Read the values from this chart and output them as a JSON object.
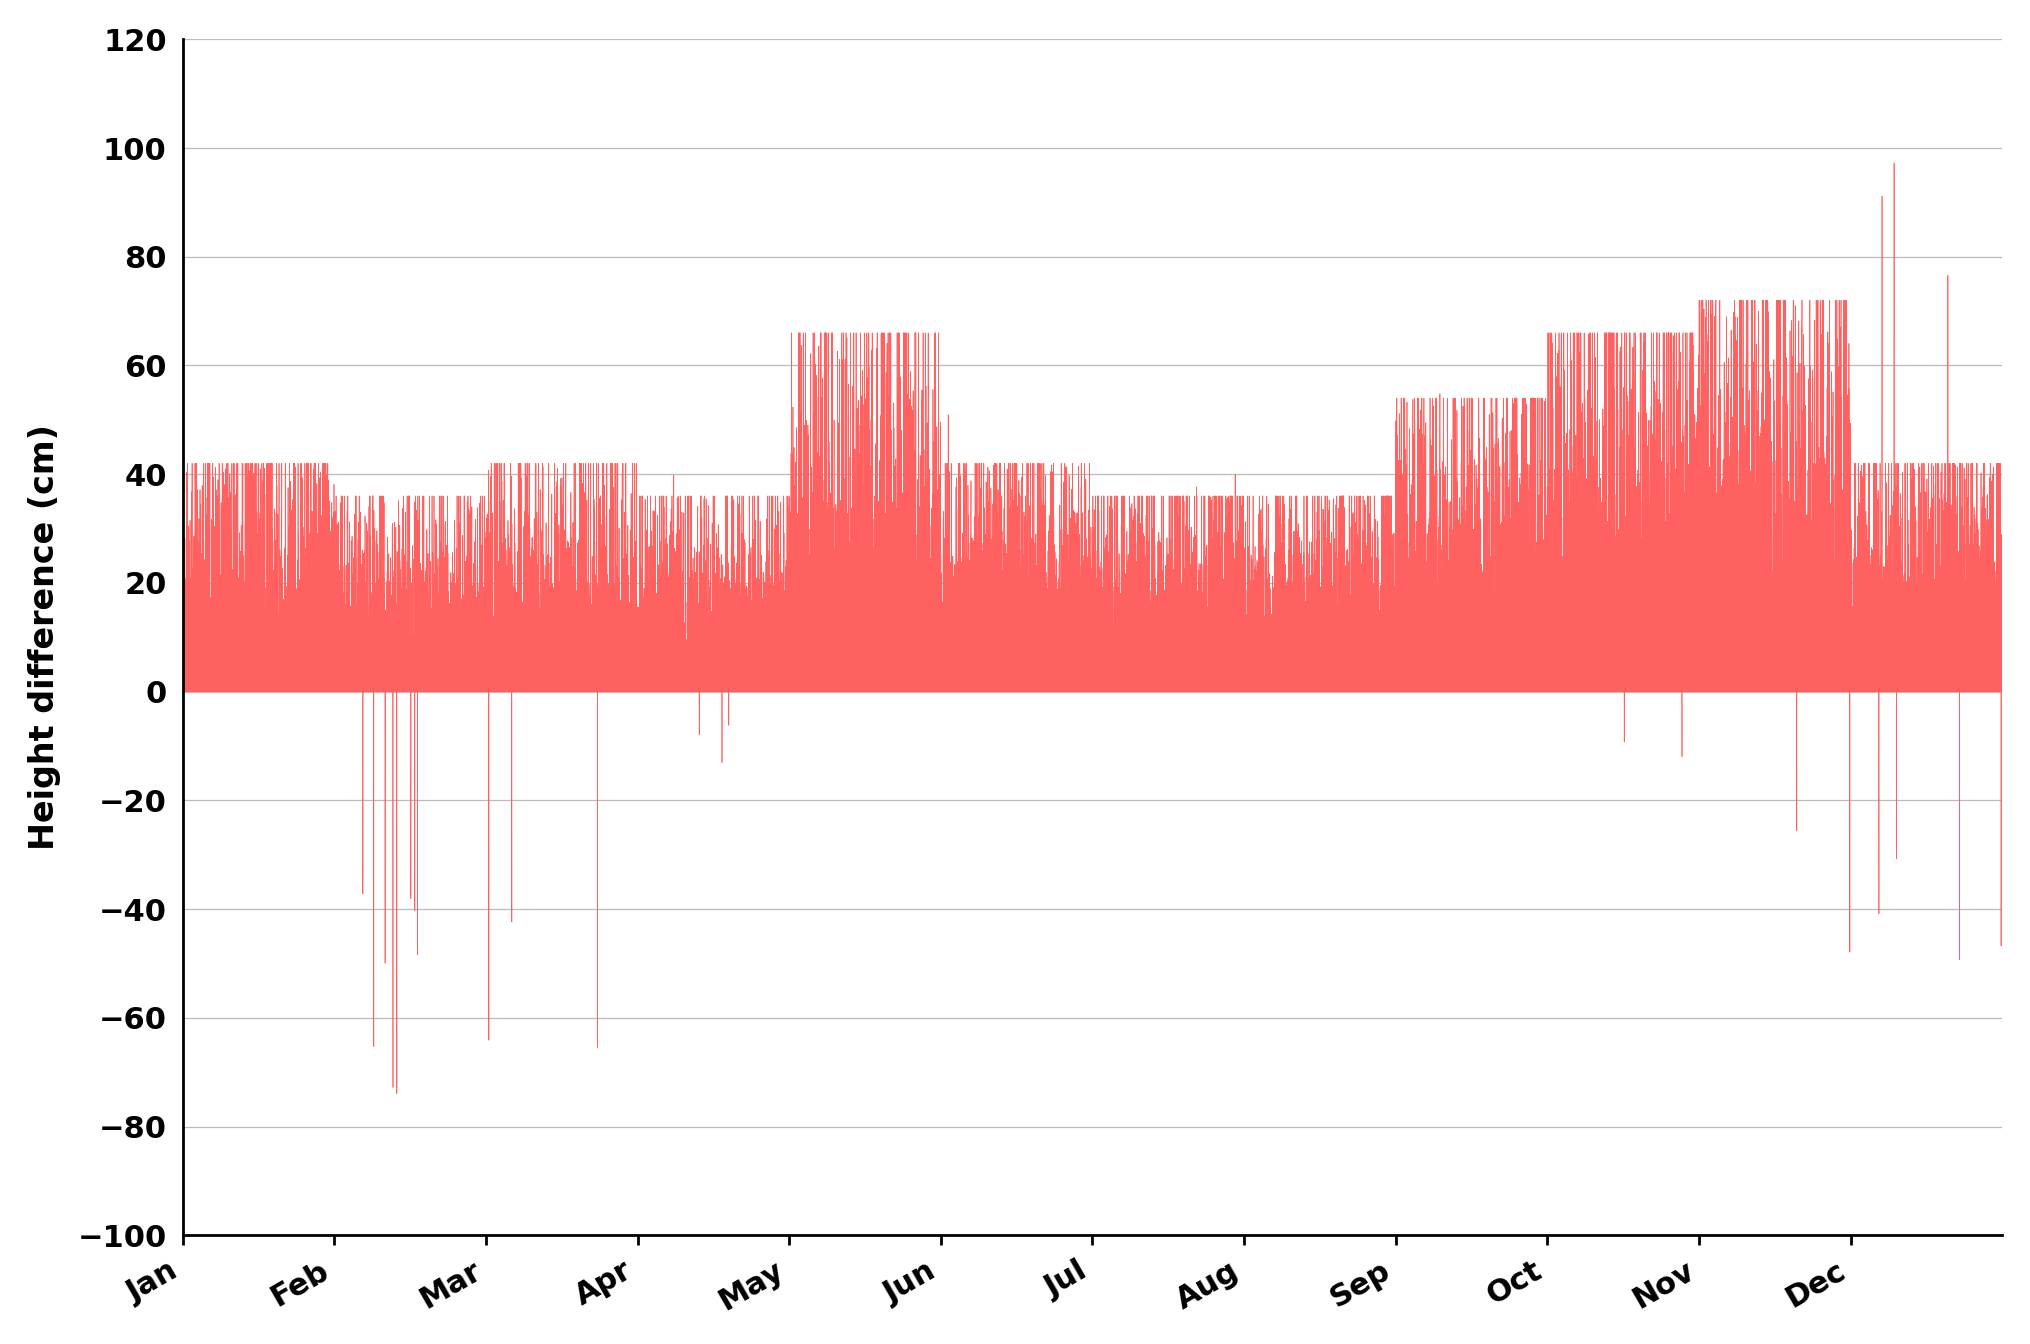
{
  "ylabel": "Height difference (cm)",
  "ylim": [
    -100,
    120
  ],
  "yticks": [
    -100,
    -80,
    -60,
    -40,
    -20,
    0,
    20,
    40,
    60,
    80,
    100,
    120
  ],
  "months": [
    "Jan",
    "Feb",
    "Mar",
    "Apr",
    "May",
    "Jun",
    "Jul",
    "Aug",
    "Sep",
    "Oct",
    "Nov",
    "Dec"
  ],
  "line_color": "#FF6060",
  "background_color": "#FFFFFF",
  "grid_color": "#BBBBBB",
  "line_width": 0.5,
  "ylabel_fontsize": 24,
  "tick_fontsize": 22,
  "seed": 123
}
